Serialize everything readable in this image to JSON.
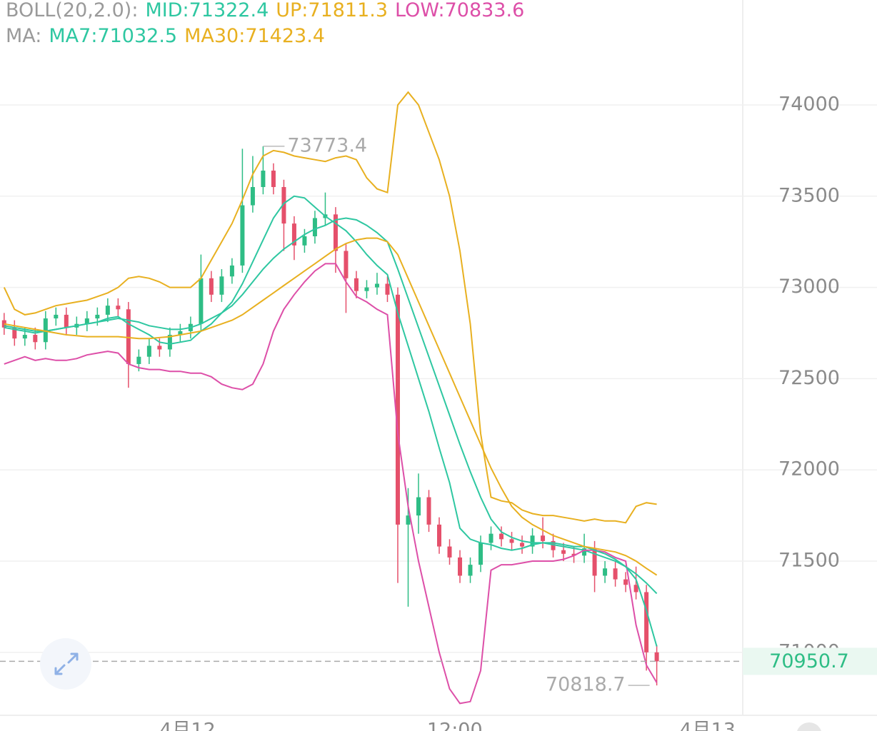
{
  "chart_data": {
    "type": "candlestick",
    "indicators": [
      {
        "title": "BOLL(20,2.0):",
        "items": [
          {
            "label": "MID:",
            "value": 71322.4,
            "color": "#2ec7a1"
          },
          {
            "label": "UP:",
            "value": 71811.3,
            "color": "#e8b020"
          },
          {
            "label": "LOW:",
            "value": 70833.6,
            "color": "#dd4fa8"
          }
        ]
      },
      {
        "title": "MA:",
        "items": [
          {
            "label": "MA7:",
            "value": 71032.5,
            "color": "#2ec7a1"
          },
          {
            "label": "MA30:",
            "value": 71423.4,
            "color": "#e8b020"
          }
        ]
      }
    ],
    "ylim": [
      70655,
      74575
    ],
    "yticks": [
      71000,
      71500,
      72000,
      72500,
      73000,
      73500,
      74000
    ],
    "xlim": [
      -0.4,
      71.3
    ],
    "xticks": [
      {
        "value": 17.7,
        "label": "4月12"
      },
      {
        "value": 43.5,
        "label": "12:00"
      },
      {
        "value": 67.9,
        "label": "4月13"
      }
    ],
    "grid": true,
    "up_color": "#2ebd85",
    "down_color": "#e5506b",
    "open": [
      72820,
      72780,
      72720,
      72740,
      72700,
      72830,
      72850,
      72780,
      72800,
      72830,
      72850,
      72900,
      72880,
      72580,
      72620,
      72680,
      72660,
      72740,
      72760,
      72800,
      73050,
      72960,
      73060,
      73120,
      73450,
      73550,
      73640,
      73550,
      73350,
      73230,
      73280,
      73380,
      73400,
      73200,
      73050,
      72980,
      73000,
      73020,
      72960,
      71700,
      71750,
      71850,
      71700,
      71580,
      71520,
      71420,
      71480,
      71600,
      71650,
      71620,
      71600,
      71580,
      71640,
      71610,
      71560,
      71540,
      71530,
      71570,
      71420,
      71460,
      71400,
      71370,
      71330,
      71000
    ],
    "high": [
      72860,
      72820,
      72780,
      72780,
      72870,
      72890,
      72890,
      72840,
      72870,
      72890,
      72940,
      72940,
      72920,
      72660,
      72720,
      72720,
      72780,
      72800,
      72840,
      73180,
      73090,
      73100,
      73160,
      73760,
      73720,
      73773.4,
      73680,
      73590,
      73390,
      73320,
      73420,
      73520,
      73440,
      73240,
      73090,
      73040,
      73080,
      73060,
      73000,
      71900,
      71980,
      71890,
      71740,
      71620,
      71560,
      71520,
      71640,
      71690,
      71690,
      71660,
      71640,
      71680,
      71740,
      71650,
      71600,
      71580,
      71650,
      71610,
      71500,
      71500,
      71440,
      71470,
      71370,
      71040
    ],
    "low": [
      72740,
      72680,
      72680,
      72660,
      72660,
      72790,
      72740,
      72740,
      72760,
      72790,
      72810,
      72840,
      72450,
      72540,
      72580,
      72620,
      72620,
      72700,
      72720,
      72760,
      72920,
      72920,
      73020,
      73080,
      73410,
      73510,
      73510,
      73200,
      73150,
      73190,
      73240,
      73340,
      73080,
      72860,
      72940,
      72940,
      72960,
      72920,
      71380,
      71250,
      71650,
      71660,
      71540,
      71480,
      71380,
      71380,
      71440,
      71560,
      71580,
      71560,
      71540,
      71540,
      71570,
      71520,
      71500,
      71490,
      71490,
      71330,
      71380,
      71360,
      71330,
      71290,
      70900,
      70818.7
    ],
    "close": [
      72780,
      72720,
      72740,
      72700,
      72830,
      72850,
      72780,
      72800,
      72830,
      72850,
      72900,
      72880,
      72580,
      72620,
      72680,
      72660,
      72740,
      72760,
      72800,
      73050,
      72960,
      73060,
      73120,
      73450,
      73550,
      73640,
      73550,
      73350,
      73230,
      73280,
      73380,
      73400,
      73200,
      73050,
      72980,
      73000,
      73020,
      72960,
      71700,
      71750,
      71850,
      71700,
      71580,
      71520,
      71420,
      71480,
      71600,
      71650,
      71620,
      71600,
      71580,
      71640,
      71610,
      71560,
      71540,
      71530,
      71570,
      71420,
      71460,
      71400,
      71370,
      71330,
      71000,
      70950.7
    ],
    "lines": [
      {
        "color": "#e8b020",
        "values": [
          73000,
          72880,
          72850,
          72860,
          72880,
          72900,
          72910,
          72920,
          72930,
          72950,
          72970,
          73000,
          73050,
          73060,
          73050,
          73030,
          73000,
          73000,
          73000,
          73050,
          73150,
          73250,
          73350,
          73480,
          73620,
          73720,
          73750,
          73740,
          73720,
          73710,
          73700,
          73690,
          73710,
          73720,
          73700,
          73600,
          73540,
          73520,
          74000,
          74070,
          74000,
          73850,
          73700,
          73500,
          73200,
          72800,
          72200,
          71850,
          71830,
          71820,
          71780,
          71760,
          71750,
          71750,
          71740,
          71730,
          71720,
          71730,
          71720,
          71720,
          71710,
          71800,
          71820,
          71811.3
        ]
      },
      {
        "color": "#2ec7a1",
        "values": [
          72790,
          72780,
          72770,
          72760,
          72760,
          72770,
          72780,
          72790,
          72800,
          72810,
          72820,
          72830,
          72820,
          72810,
          72790,
          72780,
          72770,
          72770,
          72780,
          72800,
          72830,
          72860,
          72900,
          72960,
          73030,
          73100,
          73160,
          73210,
          73250,
          73290,
          73320,
          73340,
          73370,
          73380,
          73370,
          73340,
          73300,
          73250,
          73100,
          72940,
          72780,
          72620,
          72460,
          72300,
          72140,
          71990,
          71850,
          71730,
          71660,
          71630,
          71610,
          71600,
          71600,
          71590,
          71580,
          71570,
          71560,
          71540,
          71520,
          71500,
          71470,
          71430,
          71380,
          71322.4
        ]
      },
      {
        "color": "#dd4fa8",
        "values": [
          72580,
          72600,
          72620,
          72600,
          72610,
          72600,
          72600,
          72610,
          72630,
          72640,
          72650,
          72640,
          72580,
          72560,
          72550,
          72550,
          72540,
          72540,
          72530,
          72530,
          72510,
          72470,
          72450,
          72440,
          72470,
          72580,
          72760,
          72880,
          72960,
          73030,
          73090,
          73130,
          73130,
          73030,
          72950,
          72920,
          72880,
          72850,
          72200,
          71800,
          71500,
          71250,
          71000,
          70800,
          70720,
          70730,
          70900,
          71450,
          71480,
          71480,
          71490,
          71500,
          71500,
          71500,
          71510,
          71530,
          71560,
          71560,
          71550,
          71520,
          71500,
          71150,
          70930,
          70833.6
        ]
      },
      {
        "color": "#2ec7a1",
        "values": [
          72780,
          72770,
          72760,
          72750,
          72760,
          72770,
          72780,
          72790,
          72800,
          72810,
          72830,
          72840,
          72800,
          72770,
          72740,
          72700,
          72690,
          72700,
          72710,
          72760,
          72800,
          72860,
          72920,
          73020,
          73140,
          73260,
          73380,
          73460,
          73500,
          73490,
          73440,
          73390,
          73350,
          73310,
          73250,
          73180,
          73120,
          73070,
          72860,
          72680,
          72500,
          72320,
          72120,
          71930,
          71680,
          71620,
          71600,
          71590,
          71570,
          71560,
          71570,
          71590,
          71600,
          71600,
          71590,
          71580,
          71580,
          71560,
          71540,
          71510,
          71470,
          71400,
          71230,
          71032.5
        ]
      },
      {
        "color": "#e8b020",
        "values": [
          72800,
          72790,
          72780,
          72770,
          72760,
          72750,
          72740,
          72735,
          72730,
          72730,
          72730,
          72730,
          72725,
          72720,
          72720,
          72725,
          72730,
          72740,
          72750,
          72760,
          72780,
          72800,
          72820,
          72850,
          72890,
          72930,
          72970,
          73010,
          73050,
          73090,
          73130,
          73170,
          73210,
          73240,
          73260,
          73270,
          73270,
          73250,
          73180,
          73050,
          72920,
          72790,
          72660,
          72530,
          72400,
          72270,
          72140,
          72010,
          71900,
          71800,
          71740,
          71700,
          71670,
          71640,
          71620,
          71600,
          71580,
          71570,
          71560,
          71550,
          71530,
          71500,
          71460,
          71423.4
        ]
      }
    ],
    "max_label": {
      "index": 25,
      "value": 73773.4
    },
    "min_label": {
      "index": 63,
      "value": 70818.7
    },
    "last_price": 70950.7
  }
}
